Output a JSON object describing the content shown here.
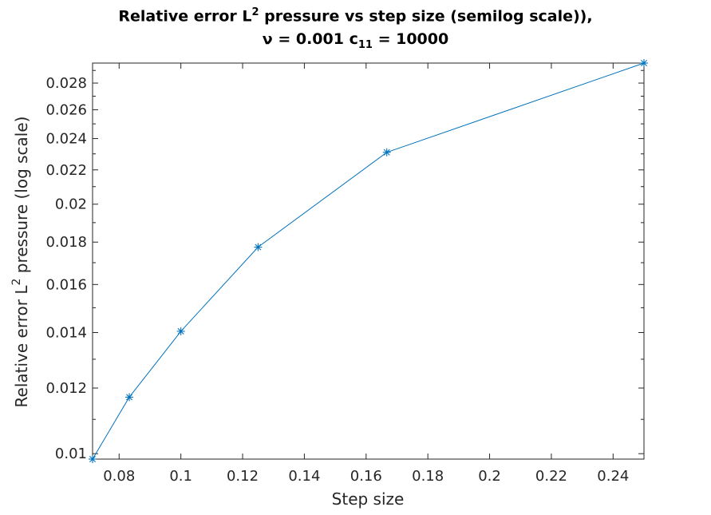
{
  "chart_data": {
    "type": "line",
    "title": {
      "line1_pre": "Relative error L",
      "line1_sup": "2",
      "line1_post": " pressure vs step size (semilog scale)),",
      "line2_pre": "ν = 0.001 c",
      "line2_sub": "11",
      "line2_post": " = 10000"
    },
    "xlabel": "Step size",
    "ylabel": {
      "pre": "Relative error L",
      "sup": "2",
      "post": " pressure (log scale)"
    },
    "yscale": "log",
    "xlim": [
      0.0714,
      0.25
    ],
    "ylim": [
      0.00985,
      0.0296
    ],
    "xticks": [
      0.08,
      0.1,
      0.12,
      0.14,
      0.16,
      0.18,
      0.2,
      0.22,
      0.24
    ],
    "xtick_labels": [
      "0.08",
      "0.1",
      "0.12",
      "0.14",
      "0.16",
      "0.18",
      "0.2",
      "0.22",
      "0.24"
    ],
    "yticks": [
      0.01,
      0.012,
      0.014,
      0.016,
      0.018,
      0.02,
      0.022,
      0.024,
      0.026,
      0.028
    ],
    "ytick_labels": [
      "0.01",
      "0.012",
      "0.014",
      "0.016",
      "0.018",
      "0.02",
      "0.022",
      "0.024",
      "0.026",
      "0.028"
    ],
    "grid": false,
    "series": [
      {
        "color": "#0072bd",
        "marker": "asterisk",
        "x": [
          0.0714,
          0.0833,
          0.1,
          0.125,
          0.1667,
          0.25
        ],
        "y": [
          0.00985,
          0.0117,
          0.01405,
          0.01775,
          0.0231,
          0.0296
        ]
      }
    ]
  }
}
